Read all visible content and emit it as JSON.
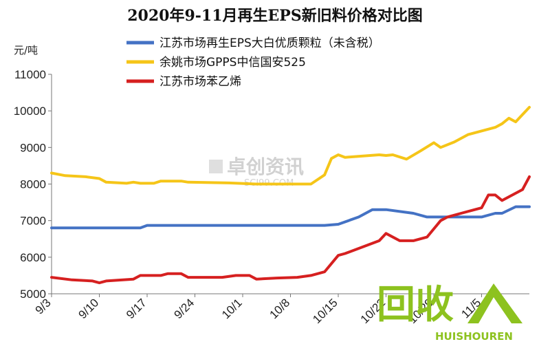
{
  "chart_data": {
    "type": "line",
    "title": "2020年9-11月再生EPS新旧料价格对比图",
    "ylabel": "元/吨",
    "ylim": [
      5000,
      11000
    ],
    "yticks": [
      5000,
      6000,
      7000,
      8000,
      9000,
      10000,
      11000
    ],
    "grid": false,
    "legend_position": "top-right",
    "categories": [
      "9/3",
      "9/10",
      "9/17",
      "9/24",
      "10/1",
      "10/8",
      "10/15",
      "10/22",
      "10/29",
      "11/5"
    ],
    "xrange": [
      0,
      70
    ],
    "series": [
      {
        "name": "江苏市场再生EPS大白优质颗粒（未含税）",
        "color": "#4472C4",
        "points": [
          [
            0,
            6800
          ],
          [
            13,
            6800
          ],
          [
            14,
            6870
          ],
          [
            40,
            6870
          ],
          [
            42,
            6900
          ],
          [
            45,
            7100
          ],
          [
            47,
            7300
          ],
          [
            49,
            7300
          ],
          [
            53,
            7200
          ],
          [
            55,
            7100
          ],
          [
            63,
            7100
          ],
          [
            65,
            7200
          ],
          [
            66,
            7200
          ],
          [
            68,
            7380
          ],
          [
            70,
            7380
          ]
        ]
      },
      {
        "name": "余姚市场GPPS中信国安525",
        "color": "#F5C518",
        "points": [
          [
            0,
            8300
          ],
          [
            2,
            8230
          ],
          [
            5,
            8200
          ],
          [
            7,
            8150
          ],
          [
            8,
            8050
          ],
          [
            11,
            8020
          ],
          [
            12,
            8050
          ],
          [
            13,
            8020
          ],
          [
            15,
            8020
          ],
          [
            16,
            8080
          ],
          [
            19,
            8080
          ],
          [
            20,
            8050
          ],
          [
            26,
            8030
          ],
          [
            30,
            8000
          ],
          [
            38,
            8000
          ],
          [
            40,
            8250
          ],
          [
            41,
            8700
          ],
          [
            42,
            8800
          ],
          [
            43,
            8730
          ],
          [
            48,
            8800
          ],
          [
            49,
            8780
          ],
          [
            50,
            8800
          ],
          [
            52,
            8680
          ],
          [
            54,
            8900
          ],
          [
            56,
            9130
          ],
          [
            57,
            9000
          ],
          [
            59,
            9150
          ],
          [
            61,
            9350
          ],
          [
            65,
            9550
          ],
          [
            66,
            9650
          ],
          [
            67,
            9800
          ],
          [
            68,
            9700
          ],
          [
            70,
            10100
          ]
        ]
      },
      {
        "name": "江苏市场苯乙烯",
        "color": "#D62020",
        "points": [
          [
            0,
            5450
          ],
          [
            3,
            5380
          ],
          [
            6,
            5350
          ],
          [
            7,
            5300
          ],
          [
            8,
            5350
          ],
          [
            12,
            5400
          ],
          [
            13,
            5500
          ],
          [
            16,
            5500
          ],
          [
            17,
            5550
          ],
          [
            19,
            5550
          ],
          [
            20,
            5450
          ],
          [
            25,
            5450
          ],
          [
            27,
            5500
          ],
          [
            29,
            5500
          ],
          [
            30,
            5400
          ],
          [
            33,
            5430
          ],
          [
            36,
            5450
          ],
          [
            38,
            5500
          ],
          [
            40,
            5600
          ],
          [
            42,
            6050
          ],
          [
            43,
            6100
          ],
          [
            48,
            6450
          ],
          [
            49,
            6650
          ],
          [
            51,
            6450
          ],
          [
            53,
            6450
          ],
          [
            55,
            6550
          ],
          [
            57,
            7000
          ],
          [
            58,
            7100
          ],
          [
            60,
            7200
          ],
          [
            62,
            7300
          ],
          [
            63,
            7350
          ],
          [
            64,
            7700
          ],
          [
            65,
            7700
          ],
          [
            66,
            7550
          ],
          [
            69,
            7850
          ],
          [
            70,
            8200
          ]
        ]
      }
    ]
  },
  "watermark": {
    "text": "卓创资讯",
    "sub": "SCI99.COM"
  },
  "logo": {
    "text": "回收",
    "sub": "HUISHOUREN"
  }
}
